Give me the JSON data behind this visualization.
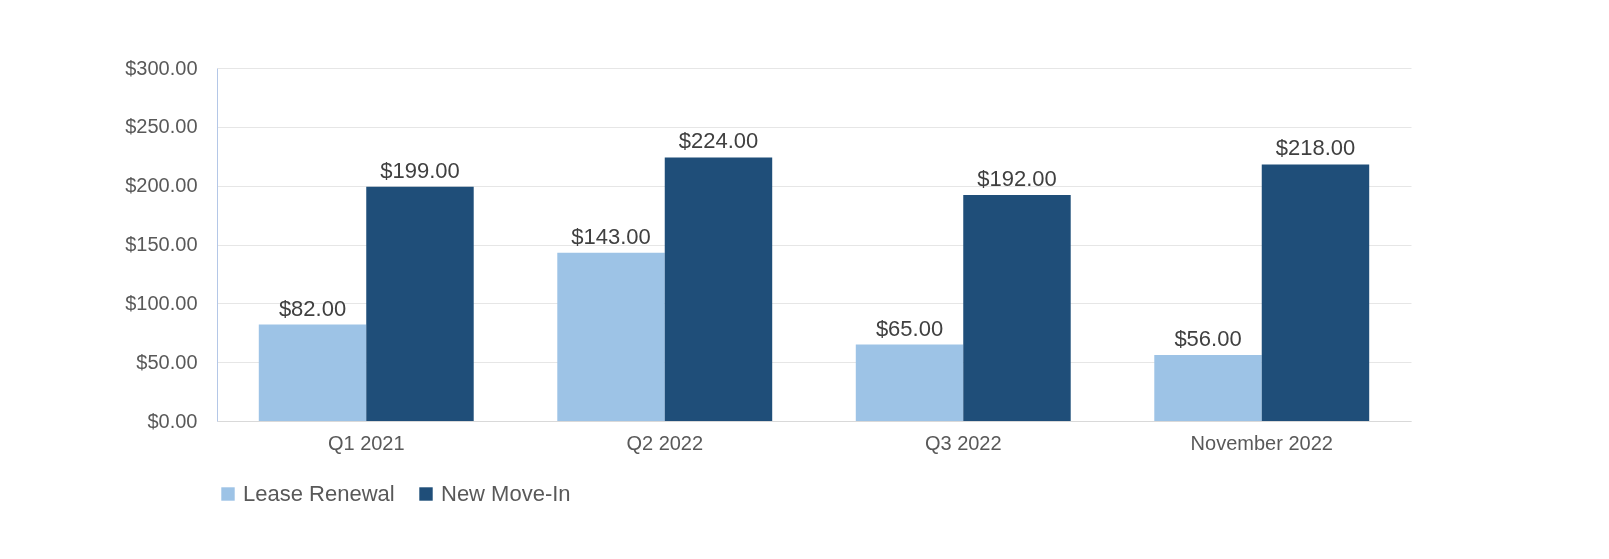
{
  "chart_data": {
    "type": "bar",
    "categories": [
      "Q1 2021",
      "Q2 2022",
      "Q3 2022",
      "November 2022"
    ],
    "series": [
      {
        "name": "Lease Renewal",
        "color": "#9dc3e6",
        "values": [
          82,
          143,
          65,
          56
        ],
        "value_labels": [
          "$82.00",
          "$143.00",
          "$65.00",
          "$56.00"
        ]
      },
      {
        "name": "New Move-In",
        "color": "#1f4e79",
        "values": [
          199,
          224,
          192,
          218
        ],
        "value_labels": [
          "$199.00",
          "$224.00",
          "$192.00",
          "$218.00"
        ]
      }
    ],
    "ylim": [
      0,
      300
    ],
    "yticks": [
      {
        "value": 0,
        "label": "$0.00"
      },
      {
        "value": 50,
        "label": "$50.00"
      },
      {
        "value": 100,
        "label": "$100.00"
      },
      {
        "value": 150,
        "label": "$150.00"
      },
      {
        "value": 200,
        "label": "$200.00"
      },
      {
        "value": 250,
        "label": "$250.00"
      },
      {
        "value": 300,
        "label": "$300.00"
      }
    ],
    "grid": "y",
    "legend": "bottom"
  }
}
